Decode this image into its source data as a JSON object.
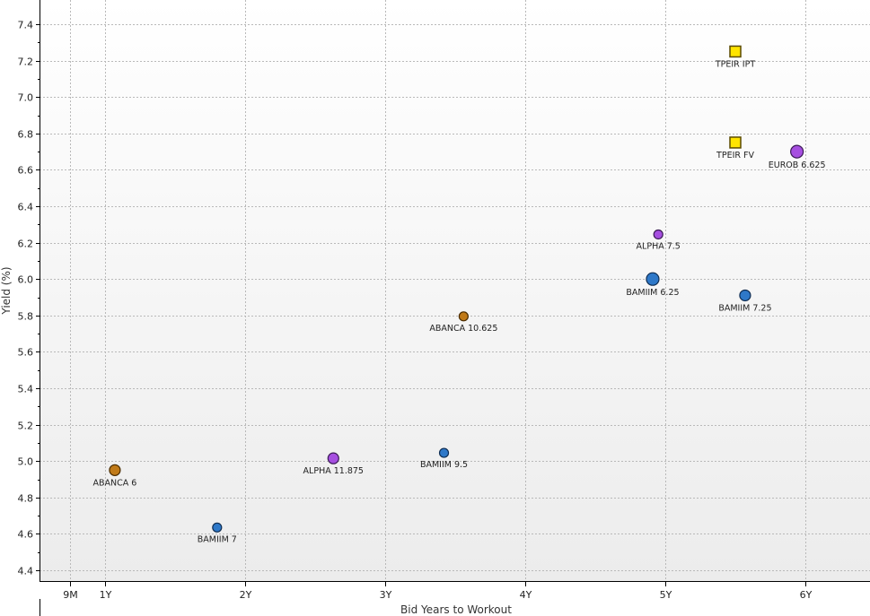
{
  "chart_data": {
    "type": "scatter",
    "title": "",
    "xlabel": "Bid Years to Workout",
    "ylabel": "Yield (%)",
    "xlim": [
      0.35,
      6.45
    ],
    "ylim": [
      4.35,
      7.5
    ],
    "x_ticks": [
      {
        "value": 0.75,
        "label": "9M"
      },
      {
        "value": 1,
        "label": "1Y"
      },
      {
        "value": 2,
        "label": "2Y"
      },
      {
        "value": 3,
        "label": "3Y"
      },
      {
        "value": 4,
        "label": "4Y"
      },
      {
        "value": 5,
        "label": "5Y"
      },
      {
        "value": 6,
        "label": "6Y"
      }
    ],
    "y_ticks": [
      {
        "value": 4.4,
        "label": "4.4"
      },
      {
        "value": 4.6,
        "label": "4.6"
      },
      {
        "value": 4.8,
        "label": "4.8"
      },
      {
        "value": 5.0,
        "label": "5.0"
      },
      {
        "value": 5.2,
        "label": "5.2"
      },
      {
        "value": 5.4,
        "label": "5.4"
      },
      {
        "value": 5.6,
        "label": "5.6"
      },
      {
        "value": 5.8,
        "label": "5.8"
      },
      {
        "value": 6.0,
        "label": "6.0"
      },
      {
        "value": 6.2,
        "label": "6.2"
      },
      {
        "value": 6.4,
        "label": "6.4"
      },
      {
        "value": 6.6,
        "label": "6.6"
      },
      {
        "value": 6.8,
        "label": "6.8"
      },
      {
        "value": 7.0,
        "label": "7.0"
      },
      {
        "value": 7.2,
        "label": "7.2"
      },
      {
        "value": 7.4,
        "label": "7.4"
      }
    ],
    "grid": true,
    "points": [
      {
        "label": "TPEIR IPT",
        "x": 5.5,
        "y": 7.25,
        "shape": "square",
        "color": "#ffe400",
        "stroke": "#5a4a00",
        "size": "medium"
      },
      {
        "label": "TPEIR FV",
        "x": 5.5,
        "y": 6.75,
        "shape": "square",
        "color": "#ffe400",
        "stroke": "#5a4a00",
        "size": "medium"
      },
      {
        "label": "EUROB 6.625",
        "x": 5.94,
        "y": 6.7,
        "shape": "circle",
        "color": "#a64fe0",
        "stroke": "#3a1a55",
        "size": "large"
      },
      {
        "label": "ALPHA 7.5",
        "x": 4.95,
        "y": 6.245,
        "shape": "circle",
        "color": "#a64fe0",
        "stroke": "#3a1a55",
        "size": "small"
      },
      {
        "label": "BAMIIM 6.25",
        "x": 4.91,
        "y": 6.0,
        "shape": "circle",
        "color": "#2e78c8",
        "stroke": "#0f2d52",
        "size": "large"
      },
      {
        "label": "BAMIIM 7.25",
        "x": 5.57,
        "y": 5.91,
        "shape": "circle",
        "color": "#2e78c8",
        "stroke": "#0f2d52",
        "size": "medium"
      },
      {
        "label": "ABANCA 10.625",
        "x": 3.56,
        "y": 5.795,
        "shape": "circle",
        "color": "#c07a18",
        "stroke": "#4a2c00",
        "size": "small"
      },
      {
        "label": "ALPHA 11.875",
        "x": 2.63,
        "y": 5.015,
        "shape": "circle",
        "color": "#a64fe0",
        "stroke": "#3a1a55",
        "size": "medium"
      },
      {
        "label": "BAMIIM 9.5",
        "x": 3.42,
        "y": 5.045,
        "shape": "circle",
        "color": "#2e78c8",
        "stroke": "#0f2d52",
        "size": "small"
      },
      {
        "label": "ABANCA 6",
        "x": 1.07,
        "y": 4.95,
        "shape": "circle",
        "color": "#c07a18",
        "stroke": "#4a2c00",
        "size": "medium"
      },
      {
        "label": "BAMIIM 7",
        "x": 1.8,
        "y": 4.635,
        "shape": "circle",
        "color": "#2e78c8",
        "stroke": "#0f2d52",
        "size": "small"
      }
    ]
  },
  "colors": {
    "background_top": "#ffffff",
    "background_bottom": "#ececec",
    "grid": "#b9b9b9",
    "axis": "#000000"
  }
}
